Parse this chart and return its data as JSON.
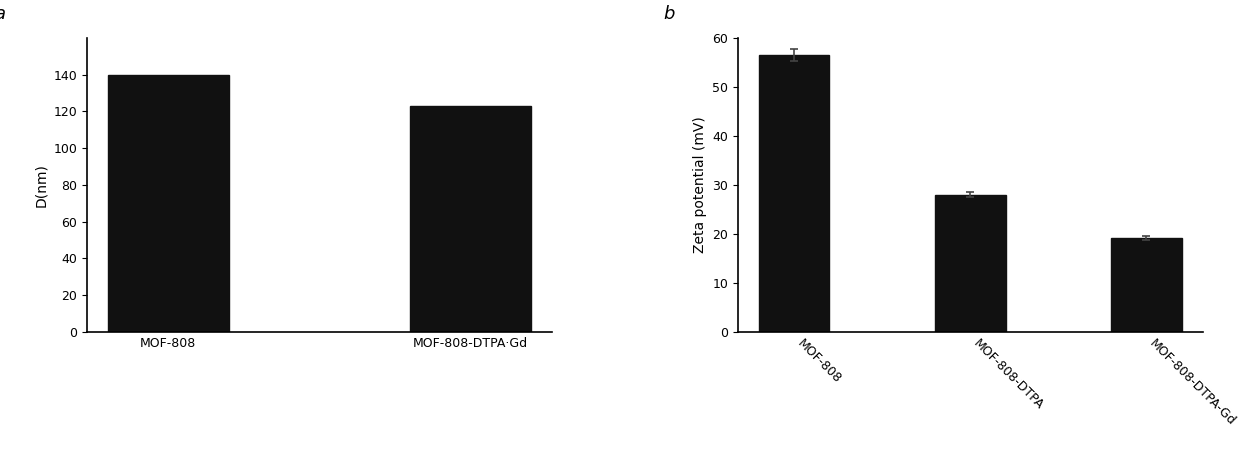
{
  "panel_a": {
    "label": "a",
    "categories": [
      "MOF-808",
      "MOF-808-DTPA·Gd"
    ],
    "values": [
      140,
      123
    ],
    "ylabel": "D(nm)",
    "ylim": [
      0,
      160
    ],
    "yticks": [
      0,
      20,
      40,
      60,
      80,
      100,
      120,
      140
    ],
    "bar_width": 0.4,
    "xlabel_rotation": 0,
    "xlabel_ha": "center"
  },
  "panel_b": {
    "label": "b",
    "categories": [
      "MOF-808",
      "MOF-808-DTPA",
      "MOF-808-DTPA-Gd"
    ],
    "values": [
      56.5,
      28.0,
      19.2
    ],
    "errors": [
      1.2,
      0.5,
      0.4
    ],
    "ylabel": "Zeta potential (mV)",
    "ylim": [
      0,
      60
    ],
    "yticks": [
      0,
      10,
      20,
      30,
      40,
      50,
      60
    ],
    "bar_width": 0.4,
    "xlabel_rotation": -45,
    "xlabel_ha": "left"
  },
  "background_color": "#ffffff",
  "bar_color": "#111111",
  "tick_fontsize": 9,
  "label_fontsize": 10,
  "panel_label_fontsize": 13
}
